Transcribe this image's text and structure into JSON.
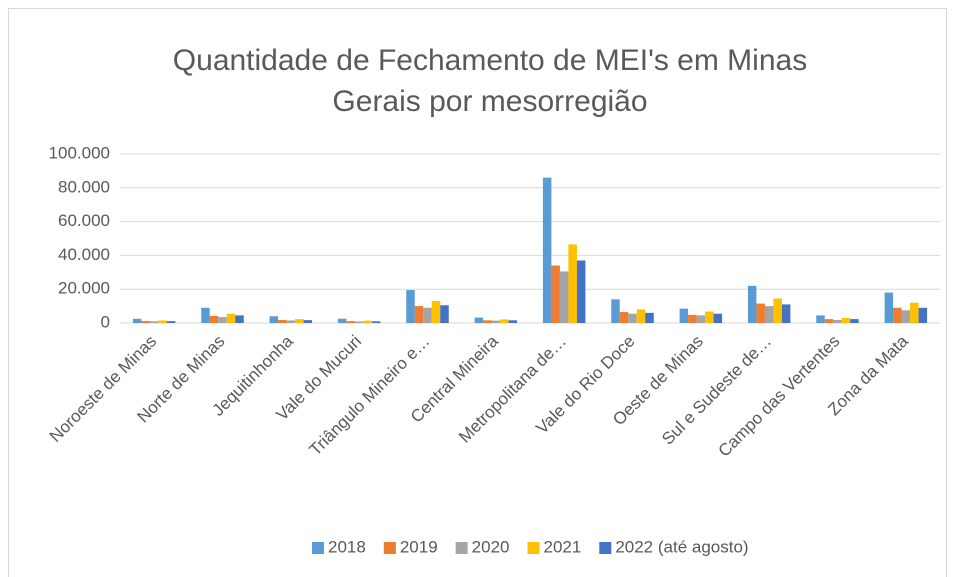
{
  "chart_data": {
    "type": "bar",
    "title": [
      "Quantidade de Fechamento de MEI's em Minas",
      "Gerais por mesorregião"
    ],
    "categories": [
      "Noroeste de Minas",
      "Norte de Minas",
      "Jequitinhonha",
      "Vale do Mucuri",
      "Triângulo Mineiro e…",
      "Central Mineira",
      "Metropolitana de…",
      "Vale do Rio Doce",
      "Oeste de Minas",
      "Sul e Sudeste de…",
      "Campo das Vertentes",
      "Zona da Mata"
    ],
    "series": [
      {
        "name": "2018",
        "color": "#5b9bd5",
        "values": [
          2500,
          9000,
          4000,
          2500,
          19500,
          3200,
          86000,
          14000,
          8500,
          22000,
          4500,
          18000
        ]
      },
      {
        "name": "2019",
        "color": "#ed7d31",
        "values": [
          1200,
          4200,
          1800,
          1100,
          10000,
          1600,
          34000,
          6500,
          4800,
          11500,
          2300,
          9000
        ]
      },
      {
        "name": "2020",
        "color": "#a5a5a5",
        "values": [
          1000,
          3500,
          1500,
          900,
          9000,
          1400,
          30500,
          5500,
          4500,
          10000,
          1800,
          7500
        ]
      },
      {
        "name": "2021",
        "color": "#ffc000",
        "values": [
          1500,
          5500,
          2300,
          1400,
          13000,
          2100,
          46500,
          8000,
          6800,
          14500,
          3000,
          12000
        ]
      },
      {
        "name": "2022 (até agosto)",
        "color": "#4472c4",
        "values": [
          1100,
          4500,
          1700,
          1000,
          10500,
          1600,
          37000,
          6000,
          5500,
          11000,
          2300,
          9000
        ]
      }
    ],
    "ylim": [
      0,
      100000
    ],
    "yticks": [
      0,
      {
        "value": 20000,
        "label": "20.000"
      },
      {
        "value": 40000,
        "label": "40.000"
      },
      {
        "value": 60000,
        "label": "60.000"
      },
      {
        "value": 80000,
        "label": "80.000"
      },
      {
        "value": 100000,
        "label": "100.000"
      }
    ],
    "grid": true,
    "legend": "bottom"
  }
}
